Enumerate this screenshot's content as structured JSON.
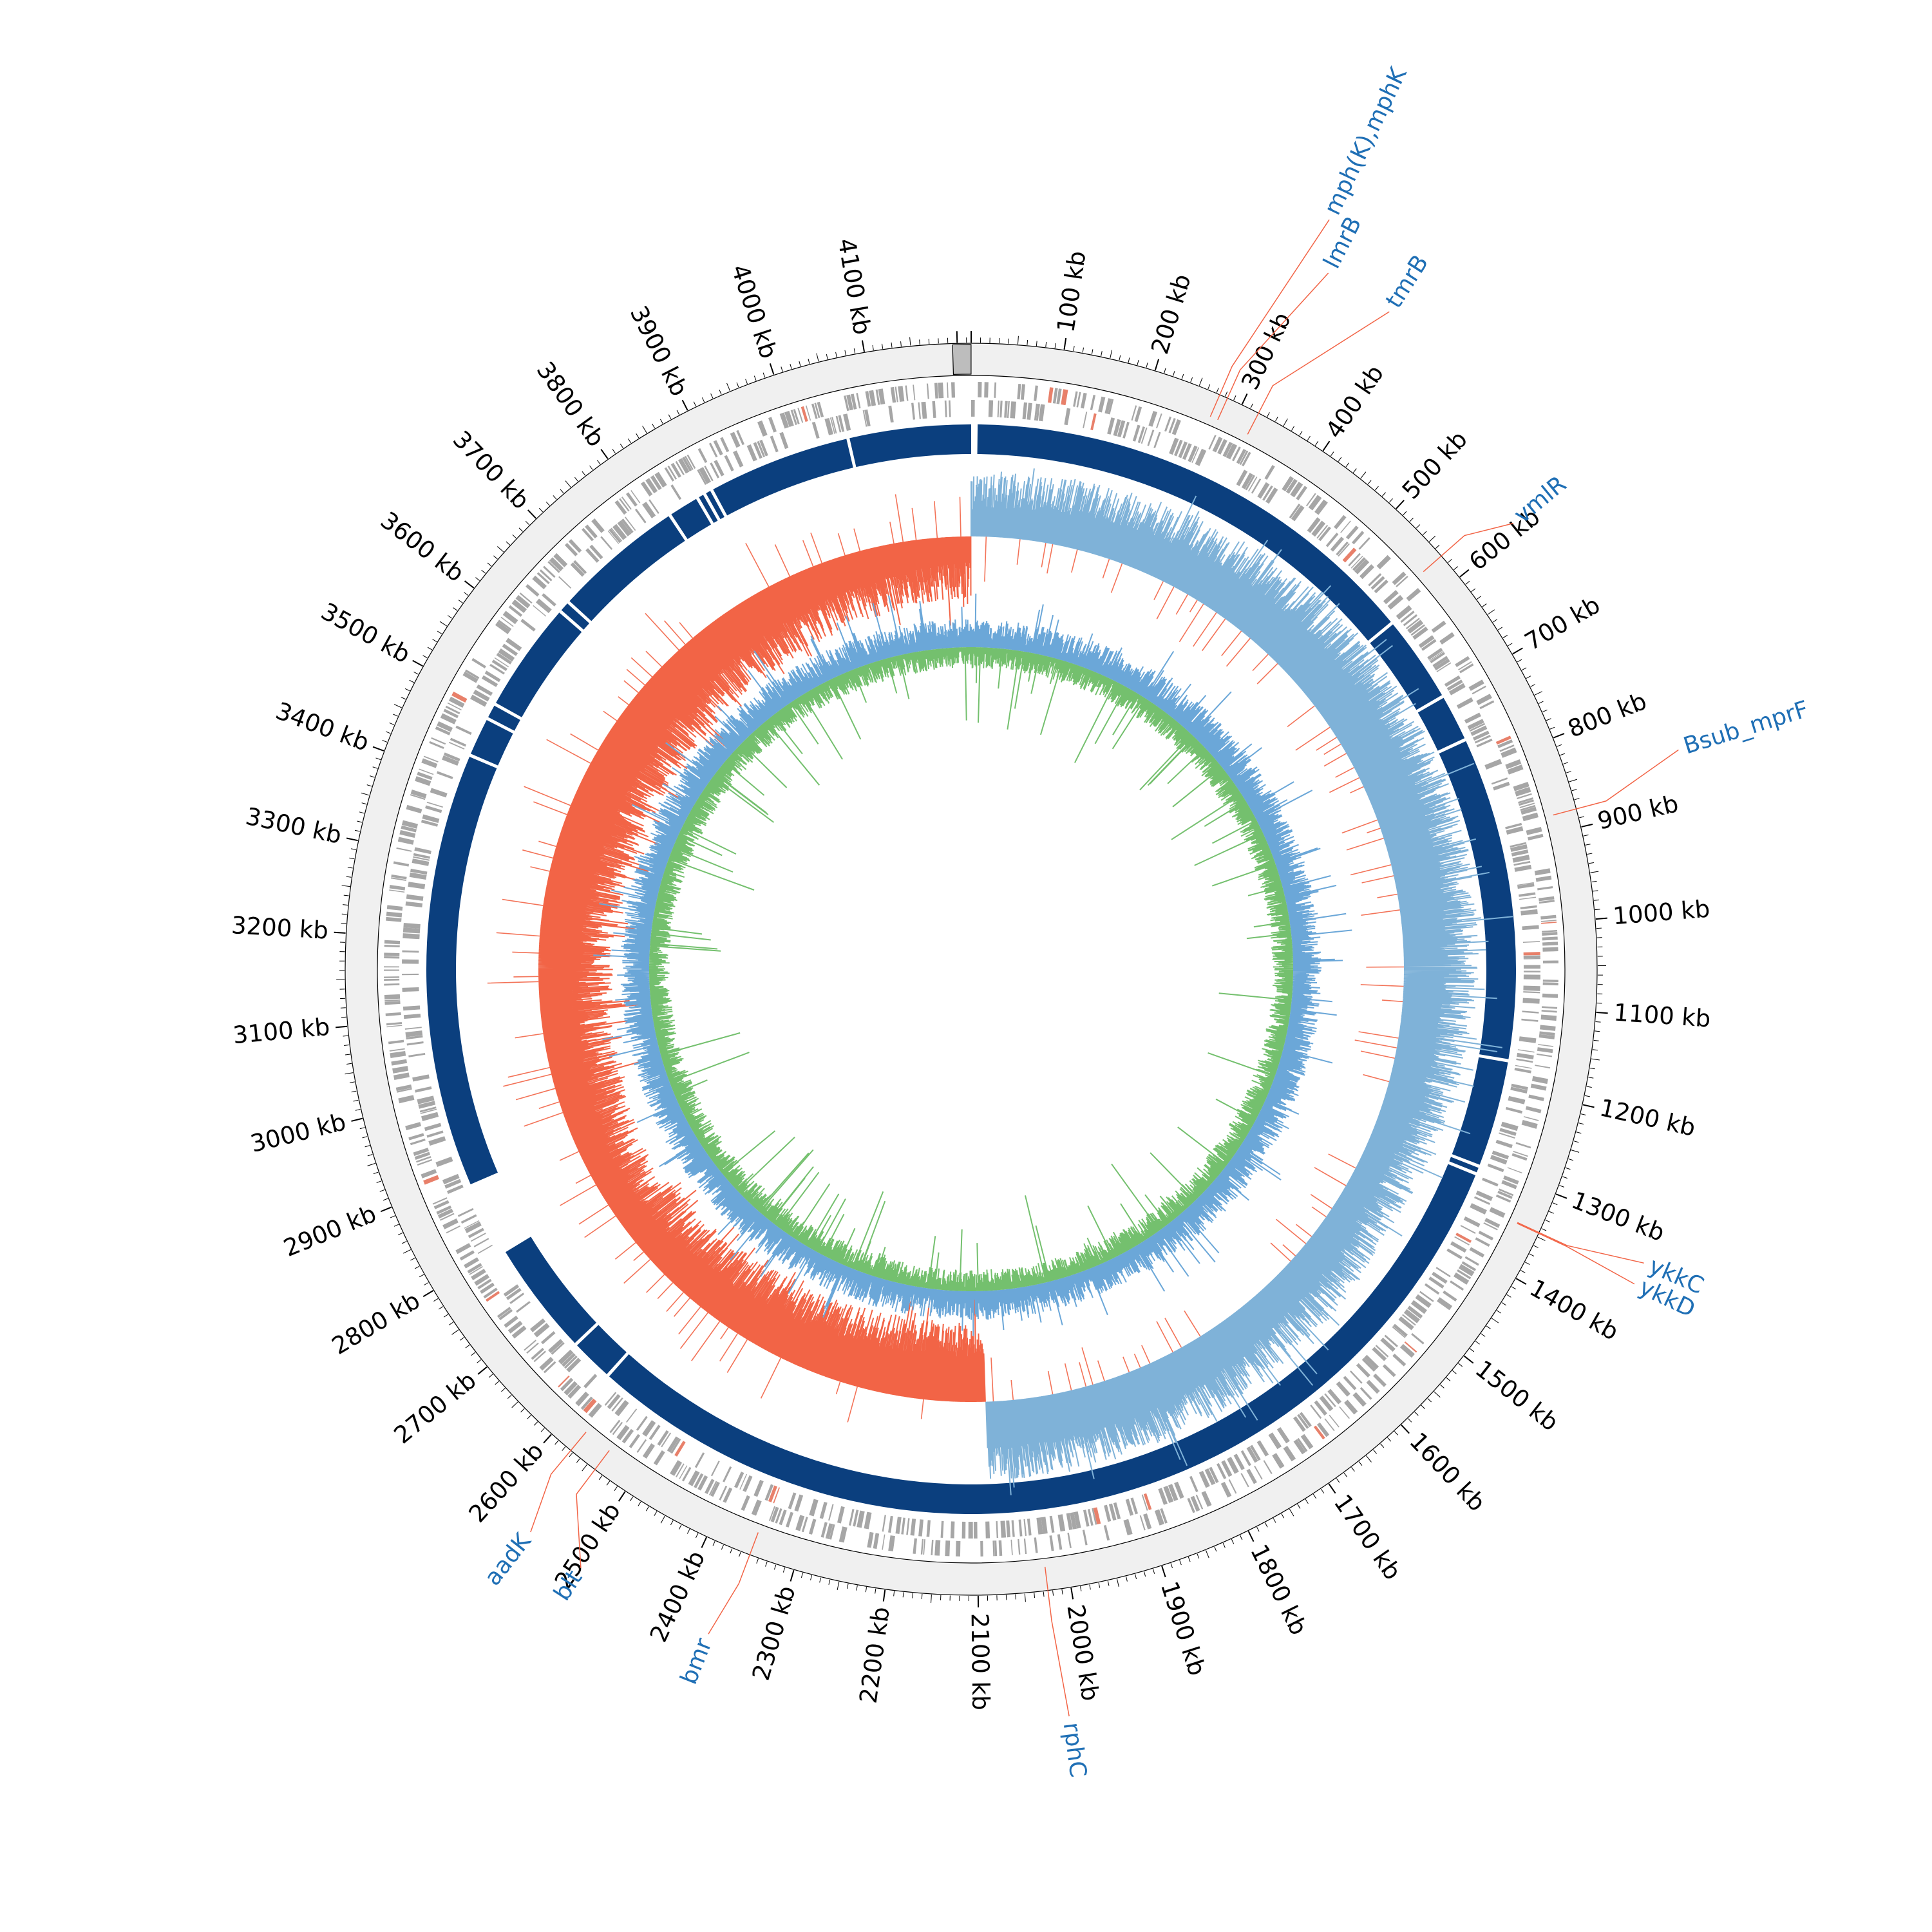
{
  "map": {
    "genome_length_kb": 4215,
    "unit": "kb",
    "tick_labels": [
      "100 kb",
      "200 kb",
      "300 kb",
      "400 kb",
      "500 kb",
      "600 kb",
      "700 kb",
      "800 kb",
      "900 kb",
      "1000 kb",
      "1100 kb",
      "1200 kb",
      "1300 kb",
      "1400 kb",
      "1500 kb",
      "1600 kb",
      "1700 kb",
      "1800 kb",
      "1900 kb",
      "2000 kb",
      "2100 kb",
      "2200 kb",
      "2300 kb",
      "2400 kb",
      "2500 kb",
      "2600 kb",
      "2700 kb",
      "2800 kb",
      "2900 kb",
      "3000 kb",
      "3100 kb",
      "3200 kb",
      "3300 kb",
      "3400 kb",
      "3500 kb",
      "3600 kb",
      "3700 kb",
      "3800 kb",
      "3900 kb",
      "4000 kb",
      "4100 kb"
    ],
    "tick_values_kb": [
      100,
      200,
      300,
      400,
      500,
      600,
      700,
      800,
      900,
      1000,
      1100,
      1200,
      1300,
      1400,
      1500,
      1600,
      1700,
      1800,
      1900,
      2000,
      2100,
      2200,
      2300,
      2400,
      2500,
      2600,
      2700,
      2800,
      2900,
      3000,
      3100,
      3200,
      3300,
      3400,
      3500,
      3600,
      3700,
      3800,
      3900,
      4000,
      4100
    ],
    "gene_annotations": [
      {
        "label": "mph(K),mphK",
        "position_kb": 274
      },
      {
        "label": "lmrB",
        "position_kb": 283
      },
      {
        "label": "tmrB",
        "position_kb": 320
      },
      {
        "label": "vmlR",
        "position_kb": 570
      },
      {
        "label": "Bsub_mprF",
        "position_kb": 880
      },
      {
        "label": "ykkC",
        "position_kb": 1345
      },
      {
        "label": "ykkD",
        "position_kb": 1346
      },
      {
        "label": "rphC",
        "position_kb": 2025
      },
      {
        "label": "bmr",
        "position_kb": 2350
      },
      {
        "label": "blt",
        "position_kb": 2540
      },
      {
        "label": "aadK",
        "position_kb": 2573
      }
    ],
    "contig_gaps_kb": [
      590,
      700,
      760,
      1165,
      1300,
      1310,
      2795,
      2885,
      2595,
      2650,
      3430,
      3480,
      3500,
      3640,
      3655,
      3820,
      3860,
      3870,
      3880,
      4060,
      4215
    ],
    "colors": {
      "backbone": "#f0f0f0",
      "backbone_marker": "#bdbdbd",
      "cds": "#a6a6a6",
      "cds_highlight": "#e8806a",
      "contigs": "#0b3f7e",
      "gc_skew_positive": "#7fb2d8",
      "gc_skew_negative": "#f26446",
      "gc_content_positive": "#74c06e",
      "gc_content_negative": "#6ba7d8",
      "label_line": "#f26446",
      "label_text": "#1f6fb5"
    }
  }
}
